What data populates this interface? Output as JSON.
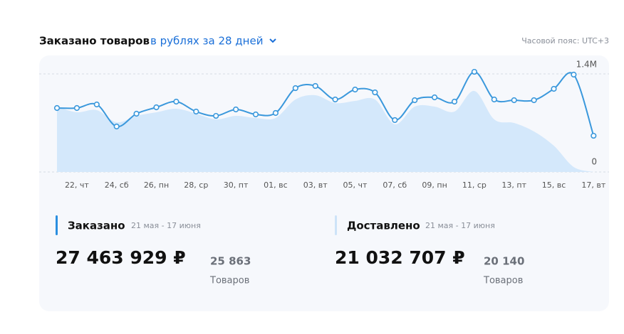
{
  "chart_data": {
    "type": "line",
    "title": "Заказано товаров",
    "subtitle": "в рублях за 28 дней",
    "timezone": "Часовой пояс: UTC+3",
    "categories": [
      null,
      "22, чт",
      null,
      "24, сб",
      null,
      "26, пн",
      null,
      "28, ср",
      null,
      "30, пт",
      null,
      "01, вс",
      null,
      "03, вт",
      null,
      "05, чт",
      null,
      "07, сб",
      null,
      "09, пн",
      null,
      "11, ср",
      null,
      "13, пт",
      null,
      "15, вс",
      null,
      "17, вт"
    ],
    "series": [
      {
        "name": "Заказано",
        "color": "#3a98dc",
        "style": "line",
        "values": [
          913000,
          913000,
          964000,
          649000,
          832000,
          923000,
          1004000,
          862000,
          801000,
          893000,
          822000,
          842000,
          1197000,
          1228000,
          1035000,
          1177000,
          1136000,
          741000,
          1025000,
          1065000,
          1004000,
          1430000,
          1035000,
          1025000,
          1025000,
          1187000,
          1390000,
          517000
        ]
      },
      {
        "name": "Доставлено",
        "color": "#d4e8fb",
        "style": "area",
        "values": [
          933000,
          852000,
          883000,
          710000,
          801000,
          852000,
          903000,
          832000,
          751000,
          801000,
          771000,
          771000,
          1035000,
          1096000,
          984000,
          1015000,
          1035000,
          680000,
          933000,
          933000,
          862000,
          1157000,
          751000,
          700000,
          578000,
          375000,
          71000,
          0
        ]
      }
    ],
    "ylim": [
      0,
      1400000
    ],
    "yticks": [
      0,
      {
        "value": 1400000,
        "label": "1.4M"
      }
    ],
    "grid": true,
    "summary": [
      {
        "period": "21 мая - 17 июня",
        "total": "27 463 929 ₽",
        "count": "25 863",
        "count_label": "Товаров"
      },
      {
        "period": "21 мая - 17 июня",
        "total": "21 032 707 ₽",
        "count": "20 140",
        "count_label": "Товаров"
      }
    ]
  }
}
